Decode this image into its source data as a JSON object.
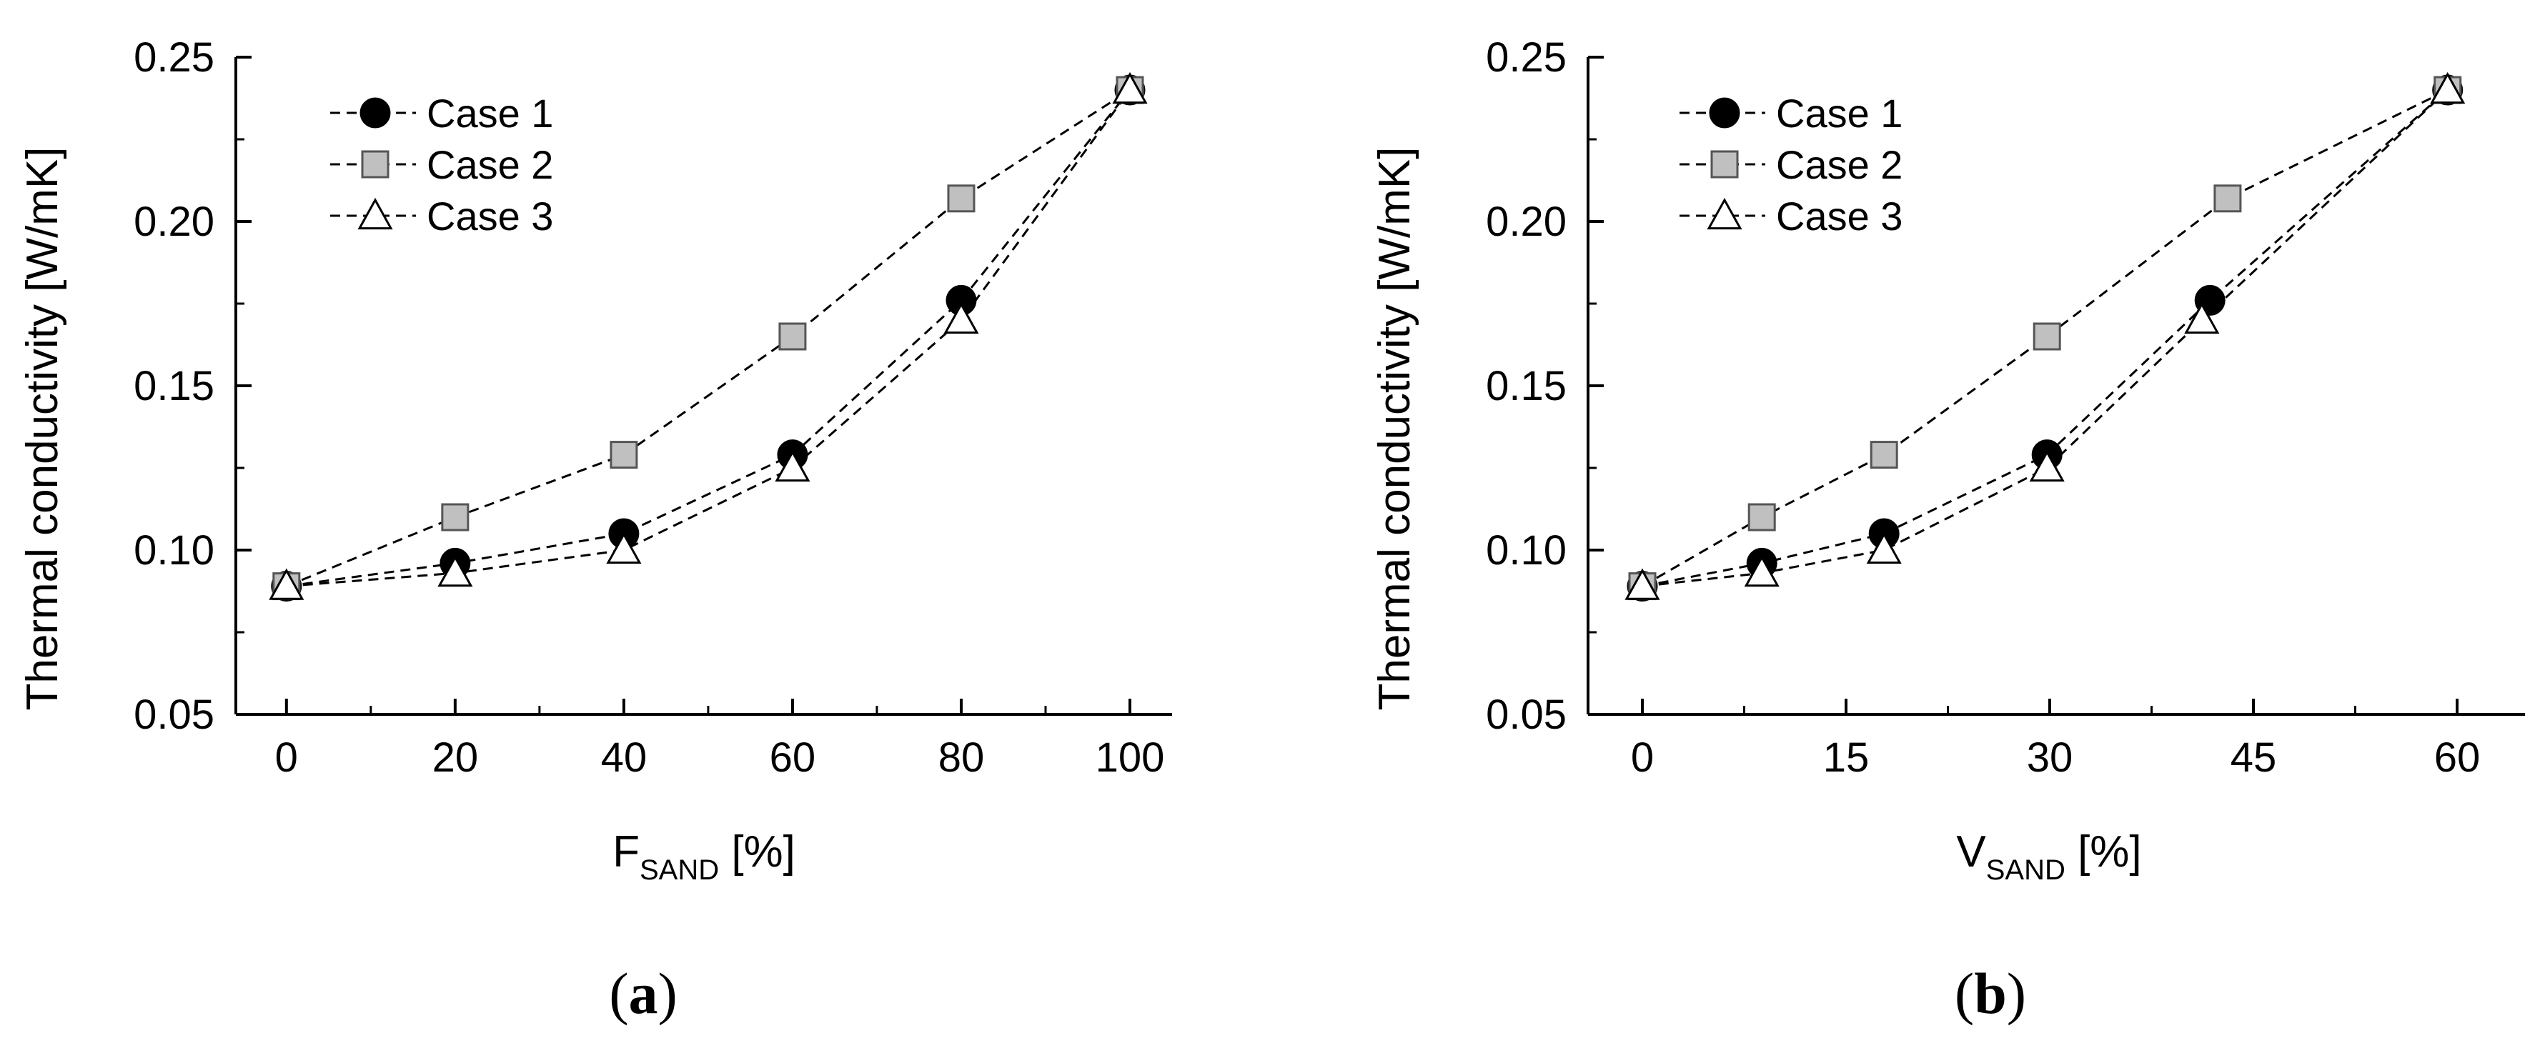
{
  "chart_data": [
    {
      "type": "line",
      "panel_label": "a",
      "ylabel": "Thermal conductivity [W/mK]",
      "xlabel_main": "F",
      "xlabel_sub": "SAND",
      "xlabel_unit": " [%]",
      "xlim": [
        -6,
        105
      ],
      "ylim": [
        0.05,
        0.25
      ],
      "xticks": [
        0,
        20,
        40,
        60,
        80,
        100
      ],
      "xtick_labels": [
        "0",
        "20",
        "40",
        "60",
        "80",
        "100"
      ],
      "yticks": [
        0.05,
        0.1,
        0.15,
        0.2,
        0.25
      ],
      "ytick_labels": [
        "0.05",
        "0.10",
        "0.15",
        "0.20",
        "0.25"
      ],
      "legend_position": "top-left",
      "series": [
        {
          "name": "Case 1",
          "marker": "circle",
          "x": [
            0,
            20,
            40,
            60,
            80,
            100
          ],
          "values": [
            0.089,
            0.096,
            0.105,
            0.129,
            0.176,
            0.24
          ]
        },
        {
          "name": "Case 2",
          "marker": "square",
          "x": [
            0,
            20,
            40,
            60,
            80,
            100
          ],
          "values": [
            0.089,
            0.11,
            0.129,
            0.165,
            0.207,
            0.24
          ]
        },
        {
          "name": "Case 3",
          "marker": "triangle",
          "x": [
            0,
            20,
            40,
            60,
            80,
            100
          ],
          "values": [
            0.089,
            0.093,
            0.1,
            0.125,
            0.17,
            0.24
          ]
        }
      ]
    },
    {
      "type": "line",
      "panel_label": "b",
      "ylabel": "Thermal conductivity [W/mK]",
      "xlabel_main": "V",
      "xlabel_sub": "SAND",
      "xlabel_unit": " [%]",
      "xlim": [
        -4,
        65
      ],
      "ylim": [
        0.05,
        0.25
      ],
      "xticks": [
        0,
        15,
        30,
        45,
        60
      ],
      "xtick_labels": [
        "0",
        "15",
        "30",
        "45",
        "60"
      ],
      "yticks": [
        0.05,
        0.1,
        0.15,
        0.2,
        0.25
      ],
      "ytick_labels": [
        "0.05",
        "0.10",
        "0.15",
        "0.20",
        "0.25"
      ],
      "legend_position": "top-left",
      "series": [
        {
          "name": "Case 1",
          "marker": "circle",
          "x": [
            0,
            8.8,
            17.8,
            29.8,
            41.8,
            59.3
          ],
          "values": [
            0.089,
            0.096,
            0.105,
            0.129,
            0.176,
            0.24
          ]
        },
        {
          "name": "Case 2",
          "marker": "square",
          "x": [
            0,
            8.8,
            17.8,
            29.8,
            43.1,
            59.3
          ],
          "values": [
            0.089,
            0.11,
            0.129,
            0.165,
            0.207,
            0.24
          ]
        },
        {
          "name": "Case 3",
          "marker": "triangle",
          "x": [
            0,
            8.8,
            17.8,
            29.8,
            41.2,
            59.3
          ],
          "values": [
            0.089,
            0.093,
            0.1,
            0.125,
            0.17,
            0.24
          ]
        }
      ]
    }
  ]
}
